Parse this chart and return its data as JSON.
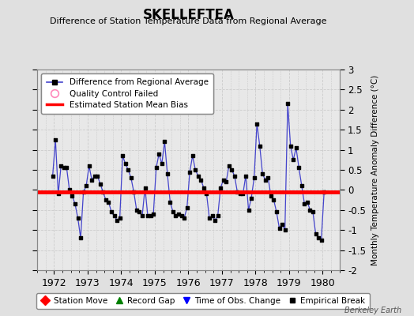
{
  "title": "SKELLEFTEA",
  "subtitle": "Difference of Station Temperature Data from Regional Average",
  "ylabel_right": "Monthly Temperature Anomaly Difference (°C)",
  "xlim": [
    1971.5,
    1980.5
  ],
  "ylim": [
    -2.0,
    3.0
  ],
  "yticks": [
    -2.0,
    -1.5,
    -1.0,
    -0.5,
    0.0,
    0.5,
    1.0,
    1.5,
    2.0,
    2.5,
    3.0
  ],
  "bias_value": -0.05,
  "bg_color": "#e0e0e0",
  "plot_bg_color": "#e8e8e8",
  "line_color": "#4444cc",
  "marker_color": "#000000",
  "bias_color": "#ff0000",
  "watermark": "Berkeley Earth",
  "data_x": [
    1971.958,
    1972.042,
    1972.125,
    1972.208,
    1972.292,
    1972.375,
    1972.458,
    1972.542,
    1972.625,
    1972.708,
    1972.792,
    1972.875,
    1972.958,
    1973.042,
    1973.125,
    1973.208,
    1973.292,
    1973.375,
    1973.458,
    1973.542,
    1973.625,
    1973.708,
    1973.792,
    1973.875,
    1973.958,
    1974.042,
    1974.125,
    1974.208,
    1974.292,
    1974.375,
    1974.458,
    1974.542,
    1974.625,
    1974.708,
    1974.792,
    1974.875,
    1974.958,
    1975.042,
    1975.125,
    1975.208,
    1975.292,
    1975.375,
    1975.458,
    1975.542,
    1975.625,
    1975.708,
    1975.792,
    1975.875,
    1975.958,
    1976.042,
    1976.125,
    1976.208,
    1976.292,
    1976.375,
    1976.458,
    1976.542,
    1976.625,
    1976.708,
    1976.792,
    1976.875,
    1976.958,
    1977.042,
    1977.125,
    1977.208,
    1977.292,
    1977.375,
    1977.458,
    1977.542,
    1977.625,
    1977.708,
    1977.792,
    1977.875,
    1977.958,
    1978.042,
    1978.125,
    1978.208,
    1978.292,
    1978.375,
    1978.458,
    1978.542,
    1978.625,
    1978.708,
    1978.792,
    1978.875,
    1978.958,
    1979.042,
    1979.125,
    1979.208,
    1979.292,
    1979.375,
    1979.458,
    1979.542,
    1979.625,
    1979.708,
    1979.792,
    1979.875,
    1979.958,
    1980.042
  ],
  "data_y": [
    0.35,
    1.25,
    -0.1,
    0.6,
    0.55,
    0.55,
    0.0,
    -0.15,
    -0.35,
    -0.7,
    -1.2,
    -0.05,
    0.1,
    0.6,
    0.25,
    0.35,
    0.35,
    0.15,
    -0.05,
    -0.25,
    -0.3,
    -0.55,
    -0.65,
    -0.75,
    -0.7,
    0.85,
    0.65,
    0.5,
    0.3,
    -0.05,
    -0.5,
    -0.55,
    -0.65,
    0.05,
    -0.65,
    -0.65,
    -0.6,
    0.55,
    0.9,
    0.65,
    1.2,
    0.4,
    -0.3,
    -0.55,
    -0.65,
    -0.6,
    -0.65,
    -0.7,
    -0.45,
    0.45,
    0.85,
    0.5,
    0.35,
    0.25,
    0.05,
    -0.1,
    -0.7,
    -0.65,
    -0.75,
    -0.65,
    0.05,
    0.25,
    0.2,
    0.6,
    0.5,
    0.35,
    -0.05,
    -0.1,
    -0.1,
    0.35,
    -0.5,
    -0.2,
    0.3,
    1.65,
    1.1,
    0.4,
    0.25,
    0.3,
    -0.15,
    -0.25,
    -0.55,
    -0.95,
    -0.85,
    -1.0,
    2.15,
    1.1,
    0.75,
    1.05,
    0.55,
    0.1,
    -0.35,
    -0.3,
    -0.5,
    -0.55,
    -1.1,
    -1.2,
    -1.25,
    -0.05
  ]
}
